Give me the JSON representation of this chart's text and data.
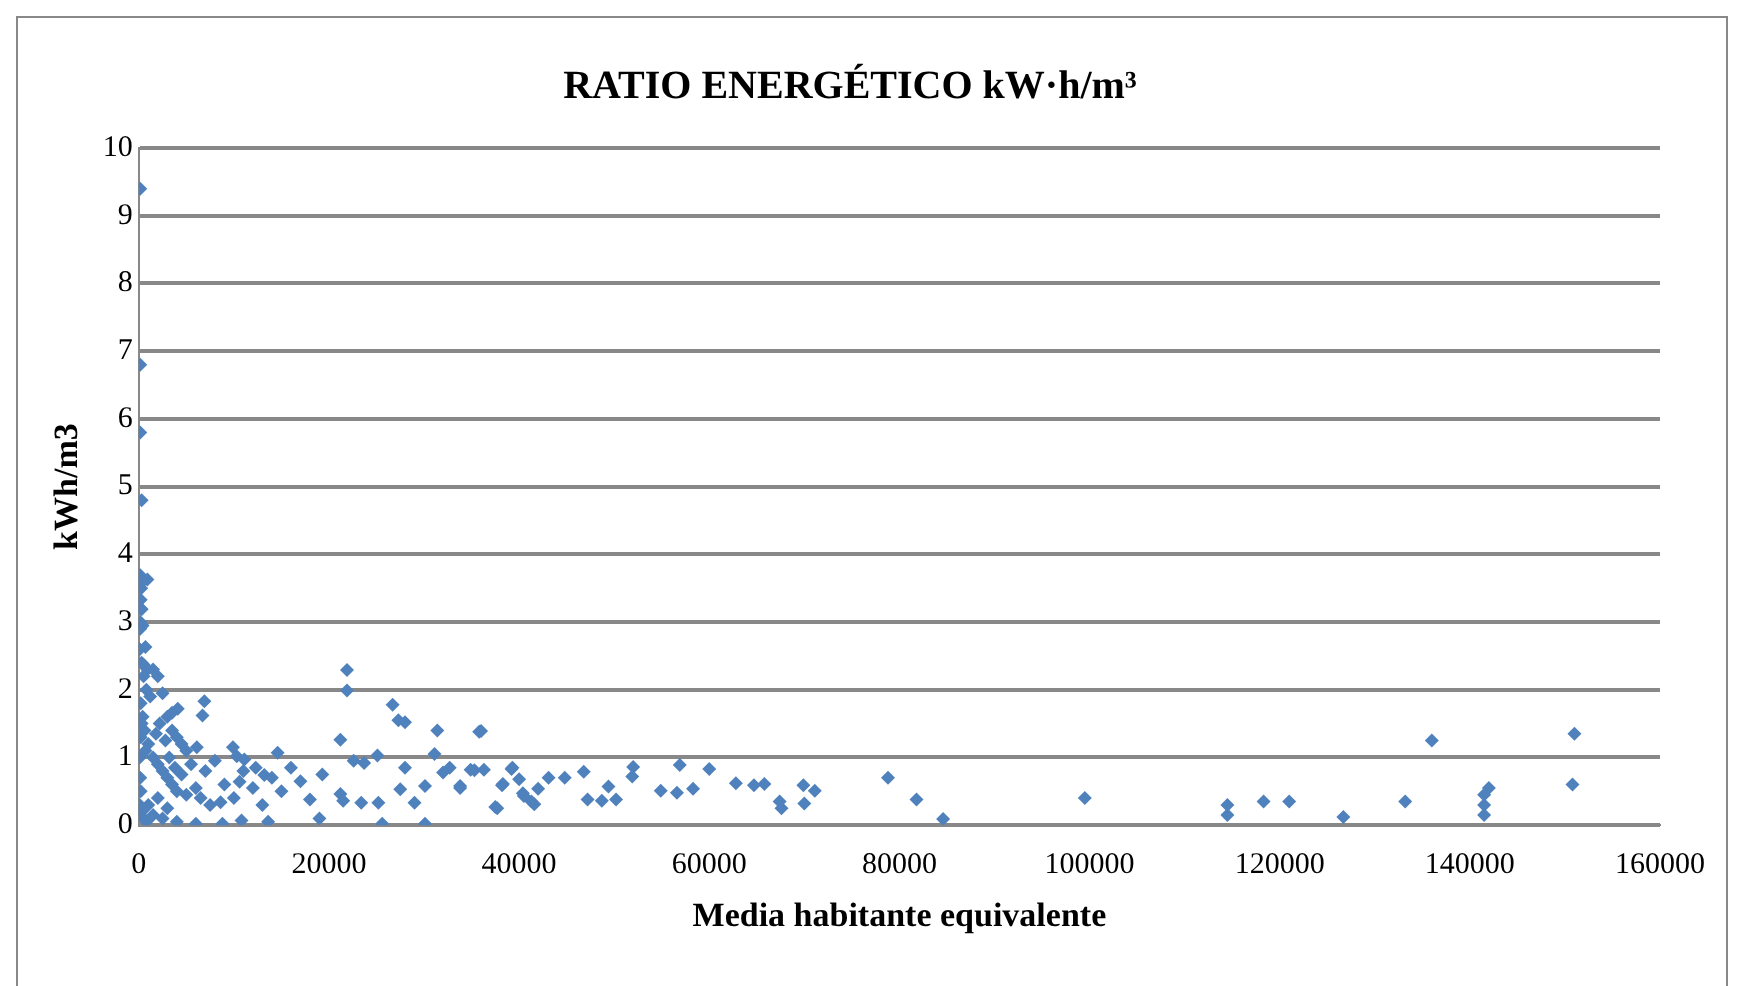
{
  "chart_data": {
    "type": "scatter",
    "title": "RATIO ENERGÉTICO kW·h/m³",
    "xlabel": "Media habitante equivalente",
    "ylabel": "kWh/m3",
    "xlim": [
      0,
      160000
    ],
    "xticks": [
      0,
      20000,
      40000,
      60000,
      80000,
      100000,
      120000,
      140000,
      160000
    ],
    "ylim": [
      0,
      10
    ],
    "yticks": [
      0,
      1,
      2,
      3,
      4,
      5,
      6,
      7,
      8,
      9,
      10
    ],
    "grid": "y",
    "legend": false,
    "marker": "diamond",
    "series": [
      {
        "color": "#4f81bd",
        "x": [
          150,
          150,
          150,
          300,
          150,
          900,
          200,
          300,
          150,
          400,
          700,
          500,
          900,
          300,
          500,
          800,
          1200,
          1500,
          2000,
          2500,
          3000,
          3500,
          4000,
          4500,
          5000,
          200,
          400,
          600,
          1000,
          1500,
          2000,
          2500,
          3000,
          3500,
          4000,
          5000,
          6000,
          7000,
          7500,
          8000,
          9000,
          10000,
          11000,
          12000,
          13000,
          15000,
          16000,
          17000,
          200,
          300,
          500,
          800,
          1000,
          1500,
          2000,
          2500,
          3000,
          4000,
          100,
          150,
          100,
          200,
          300,
          700,
          1800,
          2200,
          2800,
          3200,
          3800,
          4500,
          5500,
          6500,
          100,
          150,
          200,
          250,
          400,
          6900,
          6700,
          4100,
          3500,
          6100,
          9900,
          10300,
          11100,
          12300,
          13200,
          10600,
          8600,
          8800,
          10800,
          13600,
          6000,
          14600,
          14000,
          21900,
          21900,
          21200,
          19000,
          19300,
          18000,
          21200,
          21500,
          23400,
          25200,
          25600,
          22600,
          23700,
          25100,
          26700,
          27300,
          28000,
          27500,
          28000,
          29000,
          30100,
          30100,
          31100,
          31400,
          32000,
          32700,
          33800,
          35800,
          35300,
          37500,
          38200,
          39300,
          40400,
          41600,
          36000,
          34900,
          36300,
          33800,
          38300,
          37700,
          39200,
          40000,
          40500,
          41300,
          42000,
          43100,
          44800,
          46800,
          47200,
          48700,
          49400,
          50200,
          52000,
          51900,
          54900,
          56900,
          56600,
          58300,
          60000,
          62800,
          64700,
          65800,
          67400,
          67600,
          69900,
          70000,
          71100,
          78800,
          81800,
          84600,
          99500,
          114500,
          114500,
          118300,
          121000,
          126700,
          133200,
          136000,
          141500,
          141500,
          141500,
          142000,
          151000,
          150800
        ],
        "values": [
          9.4,
          6.8,
          5.8,
          4.8,
          3.69,
          3.63,
          3.33,
          3.19,
          3.0,
          2.95,
          2.63,
          2.37,
          2.3,
          2.4,
          2.2,
          2.0,
          1.9,
          2.3,
          2.2,
          1.95,
          1.6,
          1.4,
          1.3,
          1.2,
          1.1,
          1.8,
          1.6,
          1.4,
          1.2,
          1.0,
          0.9,
          0.8,
          0.7,
          0.6,
          0.5,
          0.45,
          0.55,
          0.8,
          0.3,
          0.95,
          0.6,
          0.4,
          0.8,
          0.55,
          0.3,
          0.5,
          0.85,
          0.65,
          0.5,
          0.2,
          0.1,
          0.05,
          0.3,
          0.15,
          0.4,
          0.1,
          0.25,
          0.05,
          1.0,
          0.7,
          0.3,
          1.3,
          1.5,
          1.1,
          1.35,
          1.5,
          1.25,
          1.0,
          0.85,
          0.75,
          0.9,
          0.4,
          2.6,
          2.9,
          3.2,
          3.5,
          3.6,
          1.83,
          1.62,
          1.72,
          1.66,
          1.15,
          1.15,
          1.02,
          0.97,
          0.85,
          0.74,
          0.64,
          0.34,
          0.02,
          0.07,
          0.05,
          0.02,
          1.07,
          0.7,
          2.29,
          1.99,
          1.26,
          0.1,
          0.75,
          0.38,
          0.46,
          0.36,
          0.33,
          0.33,
          0.02,
          0.95,
          0.92,
          1.03,
          1.78,
          1.55,
          1.52,
          0.53,
          0.85,
          0.33,
          0.02,
          0.58,
          1.05,
          1.4,
          0.78,
          0.85,
          0.55,
          1.38,
          0.81,
          0.27,
          0.59,
          0.85,
          0.47,
          0.31,
          1.39,
          0.82,
          0.82,
          0.58,
          0.61,
          0.25,
          0.83,
          0.68,
          0.43,
          0.35,
          0.54,
          0.7,
          0.7,
          0.79,
          0.38,
          0.36,
          0.57,
          0.38,
          0.86,
          0.72,
          0.51,
          0.89,
          0.48,
          0.54,
          0.83,
          0.62,
          0.59,
          0.61,
          0.35,
          0.25,
          0.59,
          0.32,
          0.51,
          0.7,
          0.38,
          0.09,
          0.4,
          0.3,
          0.15,
          0.35,
          0.35,
          0.12,
          0.35,
          1.25,
          0.3,
          0.45,
          0.15,
          0.55,
          1.35,
          0.6
        ]
      }
    ]
  }
}
